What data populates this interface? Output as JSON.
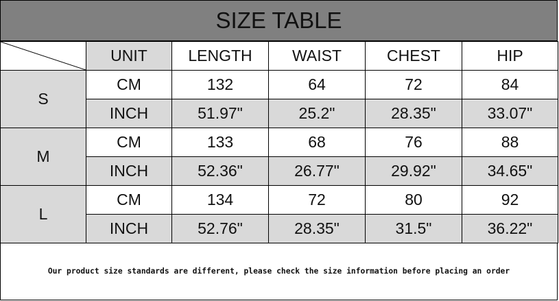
{
  "title": "SIZE TABLE",
  "headers": [
    "UNIT",
    "LENGTH",
    "WAIST",
    "CHEST",
    "HIP"
  ],
  "sizes": [
    {
      "size": "S",
      "rows": [
        [
          "CM",
          "132",
          "64",
          "72",
          "84"
        ],
        [
          "INCH",
          "51.97\"",
          "25.2\"",
          "28.35\"",
          "33.07\""
        ]
      ]
    },
    {
      "size": "M",
      "rows": [
        [
          "CM",
          "133",
          "68",
          "76",
          "88"
        ],
        [
          "INCH",
          "52.36\"",
          "26.77\"",
          "29.92\"",
          "34.65\""
        ]
      ]
    },
    {
      "size": "L",
      "rows": [
        [
          "CM",
          "134",
          "72",
          "80",
          "92"
        ],
        [
          "INCH",
          "52.76\"",
          "28.35\"",
          "31.5\"",
          "36.22\""
        ]
      ]
    }
  ],
  "note": "Our product size standards are different, please check the size information before placing an order",
  "colors": {
    "title_bg": "#808080",
    "shade": "#d9d9d9"
  }
}
